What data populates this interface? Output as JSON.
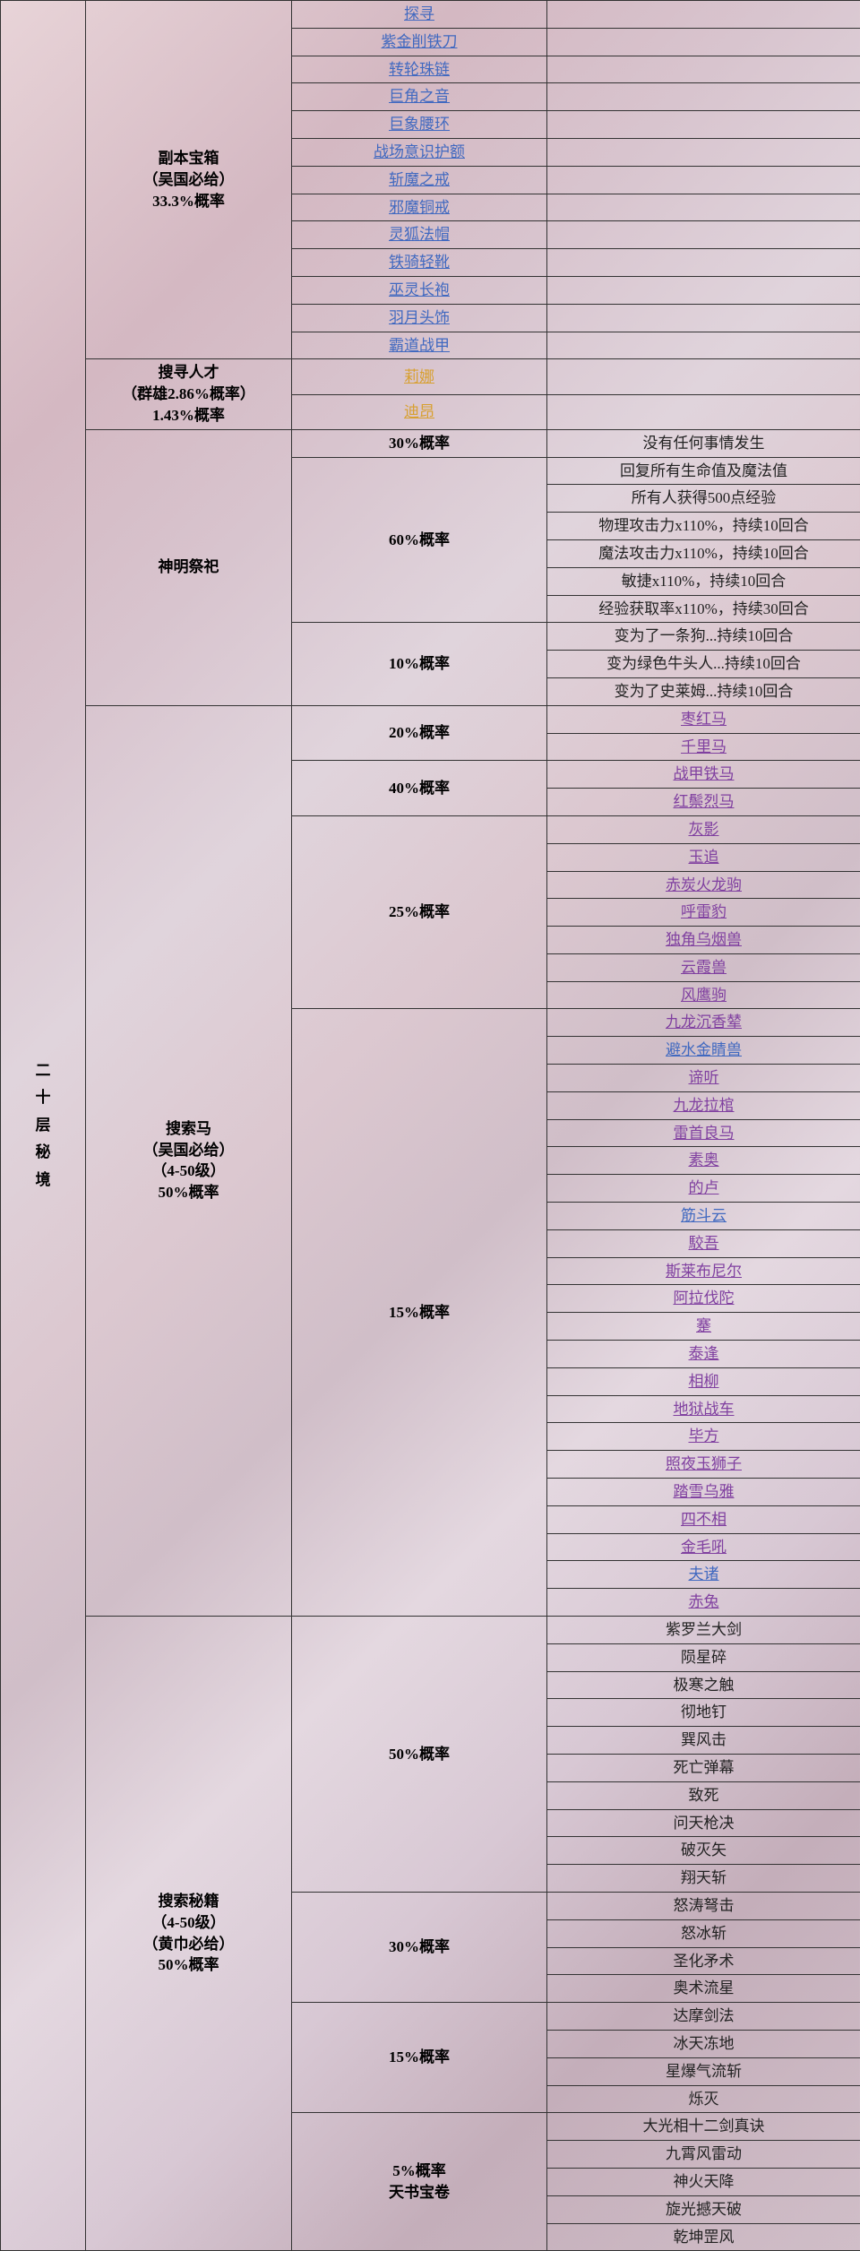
{
  "main_label": "二十层秘境",
  "colors": {
    "link_blue": "#4169c0",
    "link_purple": "#8040a0",
    "link_orange": "#d8a030",
    "link_gray": "#888888",
    "border": "#333333",
    "text": "#222222"
  },
  "section1": {
    "label_l1": "副本宝箱",
    "label_l2": "（吴国必给）",
    "label_l3": "33.3%概率",
    "items": [
      "探寻",
      "紫金削铁刀",
      "转轮珠链",
      "巨角之音",
      "巨象腰环",
      "战场意识护额",
      "斩魔之戒",
      "邪魔铜戒",
      "灵狐法帽",
      "铁骑轻靴",
      "巫灵长袍",
      "羽月头饰",
      "霸道战甲"
    ]
  },
  "section2": {
    "label_l1": "搜寻人才",
    "label_l2": "（群雄2.86%概率）",
    "label_l3": "1.43%概率",
    "items": [
      "莉娜",
      "迪昂"
    ]
  },
  "section3": {
    "label": "神明祭祀",
    "groups": [
      {
        "prob": "30%概率",
        "items": [
          {
            "t": "没有任何事情发生",
            "c": "plain"
          }
        ]
      },
      {
        "prob": "60%概率",
        "items": [
          {
            "t": "回复所有生命值及魔法值",
            "c": "plain"
          },
          {
            "t": "所有人获得500点经验",
            "c": "plain"
          },
          {
            "t": "物理攻击力x110%，持续10回合",
            "c": "plain"
          },
          {
            "t": "魔法攻击力x110%，持续10回合",
            "c": "plain"
          },
          {
            "t": "敏捷x110%，持续10回合",
            "c": "plain"
          },
          {
            "t": "经验获取率x110%，持续30回合",
            "c": "plain"
          }
        ]
      },
      {
        "prob": "10%概率",
        "items": [
          {
            "t": "变为了一条狗...持续10回合",
            "c": "plain"
          },
          {
            "t": "变为绿色牛头人...持续10回合",
            "c": "plain"
          },
          {
            "t": "变为了史莱姆...持续10回合",
            "c": "plain"
          }
        ]
      }
    ]
  },
  "section4": {
    "label_l1": "搜索马",
    "label_l2": "（吴国必给）",
    "label_l3": "（4-50级）",
    "label_l4": "50%概率",
    "groups": [
      {
        "prob": "20%概率",
        "items": [
          {
            "t": "枣红马",
            "c": "link-purple"
          },
          {
            "t": "千里马",
            "c": "link-purple"
          }
        ]
      },
      {
        "prob": "40%概率",
        "items": [
          {
            "t": "战甲铁马",
            "c": "link-purple"
          },
          {
            "t": "红鬃烈马",
            "c": "link-purple"
          }
        ]
      },
      {
        "prob": "25%概率",
        "items": [
          {
            "t": "灰影",
            "c": "link-purple"
          },
          {
            "t": "玉追",
            "c": "link-purple"
          },
          {
            "t": "赤炭火龙驹",
            "c": "link-purple"
          },
          {
            "t": "呼雷豹",
            "c": "link-purple"
          },
          {
            "t": "独角乌烟兽",
            "c": "link-purple"
          },
          {
            "t": "云霞兽",
            "c": "link-purple"
          },
          {
            "t": "风鹰驹",
            "c": "link-purple"
          }
        ]
      },
      {
        "prob": "15%概率",
        "items": [
          {
            "t": "九龙沉香辇",
            "c": "link-purple"
          },
          {
            "t": "避水金睛兽",
            "c": "link-blue"
          },
          {
            "t": "谛听",
            "c": "link-purple"
          },
          {
            "t": "九龙拉棺",
            "c": "link-purple"
          },
          {
            "t": "雷首良马",
            "c": "link-purple"
          },
          {
            "t": "素奥",
            "c": "link-purple"
          },
          {
            "t": "的卢",
            "c": "link-purple"
          },
          {
            "t": "筋斗云",
            "c": "link-blue"
          },
          {
            "t": "駮吾",
            "c": "link-purple"
          },
          {
            "t": "斯莱布尼尔",
            "c": "link-purple"
          },
          {
            "t": "阿拉伐陀",
            "c": "link-purple"
          },
          {
            "t": "䞿",
            "c": "link-purple"
          },
          {
            "t": "泰逢",
            "c": "link-purple"
          },
          {
            "t": "相柳",
            "c": "link-purple"
          },
          {
            "t": "地狱战车",
            "c": "link-purple"
          },
          {
            "t": "毕方",
            "c": "link-purple"
          },
          {
            "t": "照夜玉狮子",
            "c": "link-purple"
          },
          {
            "t": "踏雪乌雅",
            "c": "link-purple"
          },
          {
            "t": "四不相",
            "c": "link-purple"
          },
          {
            "t": "金毛吼",
            "c": "link-purple"
          },
          {
            "t": "夫诸",
            "c": "link-blue"
          },
          {
            "t": "赤兔",
            "c": "link-purple"
          }
        ]
      }
    ]
  },
  "section5": {
    "label_l1": "搜索秘籍",
    "label_l2": "（4-50级）",
    "label_l3": "（黄巾必给）",
    "label_l4": "50%概率",
    "groups": [
      {
        "prob": "50%概率",
        "items": [
          {
            "t": "紫罗兰大剑",
            "c": "plain"
          },
          {
            "t": "陨星碎",
            "c": "plain"
          },
          {
            "t": "极寒之触",
            "c": "plain"
          },
          {
            "t": "彻地钉",
            "c": "plain"
          },
          {
            "t": "巽风击",
            "c": "plain"
          },
          {
            "t": "死亡弹幕",
            "c": "plain"
          },
          {
            "t": "致死",
            "c": "plain"
          },
          {
            "t": "问天枪决",
            "c": "plain"
          },
          {
            "t": "破灭矢",
            "c": "plain"
          },
          {
            "t": "翔天斩",
            "c": "plain"
          }
        ]
      },
      {
        "prob": "30%概率",
        "items": [
          {
            "t": "怒涛弩击",
            "c": "plain"
          },
          {
            "t": "怒冰斩",
            "c": "plain"
          },
          {
            "t": "圣化矛术",
            "c": "plain"
          },
          {
            "t": "奥术流星",
            "c": "plain"
          }
        ]
      },
      {
        "prob": "15%概率",
        "items": [
          {
            "t": "达摩剑法",
            "c": "plain"
          },
          {
            "t": "冰天冻地",
            "c": "plain"
          },
          {
            "t": "星爆气流斩",
            "c": "plain"
          },
          {
            "t": "烁灭",
            "c": "plain"
          }
        ]
      },
      {
        "prob_l1": "5%概率",
        "prob_l2": "天书宝卷",
        "items": [
          {
            "t": "大光相十二剑真诀",
            "c": "plain"
          },
          {
            "t": "九霄风雷动",
            "c": "plain"
          },
          {
            "t": "神火天降",
            "c": "plain"
          },
          {
            "t": "旋光撼天破",
            "c": "plain"
          },
          {
            "t": "乾坤罡风",
            "c": "plain"
          }
        ]
      }
    ]
  }
}
